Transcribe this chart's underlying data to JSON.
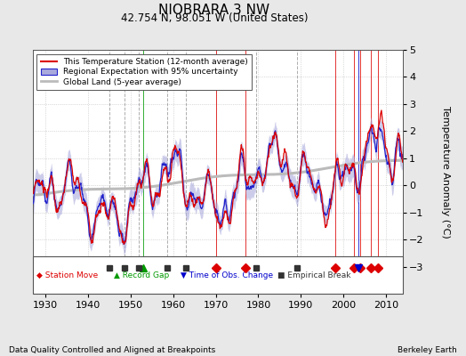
{
  "title": "NIOBRARA 3 NW",
  "subtitle": "42.754 N, 98.051 W (United States)",
  "ylabel": "Temperature Anomaly (°C)",
  "footer_left": "Data Quality Controlled and Aligned at Breakpoints",
  "footer_right": "Berkeley Earth",
  "xlim": [
    1927,
    2014
  ],
  "ylim": [
    -4,
    5
  ],
  "yticks": [
    -3,
    -2,
    -1,
    0,
    1,
    2,
    3,
    4,
    5
  ],
  "xticks": [
    1930,
    1940,
    1950,
    1960,
    1970,
    1980,
    1990,
    2000,
    2010
  ],
  "station_color": "#dd0000",
  "regional_color": "#2222cc",
  "regional_fill_color": "#aaaadd",
  "global_color": "#bbbbbb",
  "marker_annotations": {
    "station_move": {
      "color": "#dd0000",
      "marker": "D",
      "label": "Station Move",
      "years": [
        1970.0,
        1977.0,
        1998.0,
        2002.5,
        2004.0,
        2006.5,
        2008.0
      ]
    },
    "record_gap": {
      "color": "#009900",
      "marker": "^",
      "label": "Record Gap",
      "years": [
        1953.0
      ]
    },
    "time_obs_change": {
      "color": "#0000cc",
      "marker": "v",
      "label": "Time of Obs. Change",
      "years": [
        2003.5
      ]
    },
    "empirical_break": {
      "color": "#333333",
      "marker": "s",
      "label": "Empirical Break",
      "years": [
        1945.0,
        1948.5,
        1952.0,
        1958.5,
        1963.0,
        1979.5,
        1989.0
      ]
    }
  },
  "background_color": "#e8e8e8",
  "plot_bg_color": "#ffffff"
}
